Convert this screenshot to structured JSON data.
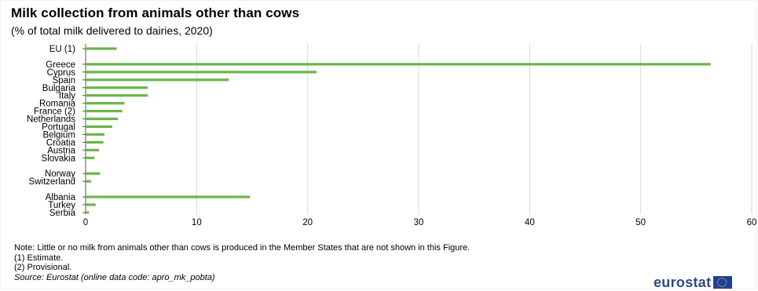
{
  "chart_data": {
    "type": "bar",
    "orientation": "horizontal",
    "title": "Milk collection from animals other than cows",
    "subtitle": "(% of total milk delivered to dairies, 2020)",
    "xlim": [
      0,
      60
    ],
    "xticks": [
      0,
      10,
      20,
      30,
      40,
      50,
      60
    ],
    "grid": true,
    "bar_color": "#6ab64b",
    "groups": [
      {
        "categories": [
          "EU (1)"
        ],
        "values": [
          2.8
        ]
      },
      {
        "categories": [
          "Greece",
          "Cyprus",
          "Spain",
          "Bulgaria",
          "Italy",
          "Romania",
          "France (2)",
          "Netherlands",
          "Portugal",
          "Belgium",
          "Croatia",
          "Austria",
          "Slovakia"
        ],
        "values": [
          56.3,
          20.8,
          12.9,
          5.6,
          5.6,
          3.5,
          3.3,
          2.9,
          2.4,
          1.7,
          1.6,
          1.2,
          0.8
        ]
      },
      {
        "categories": [
          "Norway",
          "Switzerland"
        ],
        "values": [
          1.3,
          0.5
        ]
      },
      {
        "categories": [
          "Albania",
          "Turkey",
          "Serbia"
        ],
        "values": [
          14.8,
          0.9,
          0.3
        ]
      }
    ]
  },
  "notes": {
    "note": "Note: Little or no milk from animals other than cows is produced in the Member States that are not shown in this Figure.",
    "estimate": "(1) Estimate.",
    "provisional": "(2) Provisional.",
    "source": "Source: Eurostat (online data code: apro_mk_pobta)"
  },
  "logo": {
    "text": "eurostat"
  }
}
